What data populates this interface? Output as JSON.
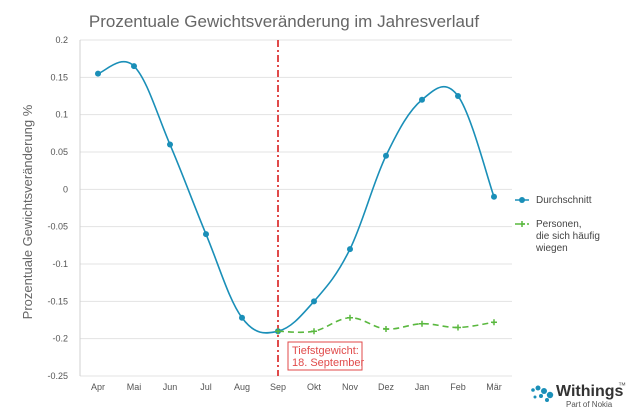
{
  "chart_data": {
    "type": "line",
    "title": "Prozentuale Gewichtsveränderung im Jahresverlauf",
    "xlabel": "",
    "ylabel": "Prozentuale Gewichtsveränderung %",
    "categories": [
      "Apr",
      "Mai",
      "Jun",
      "Jul",
      "Aug",
      "Sep",
      "Okt",
      "Nov",
      "Dez",
      "Jan",
      "Feb",
      "Mär"
    ],
    "ylim": [
      -0.25,
      0.2
    ],
    "yticks": [
      "0.2",
      "0.15",
      "0.1",
      "0.05",
      "0",
      "-0.05",
      "-0.1",
      "-0.15",
      "-0.2",
      "-0.25"
    ],
    "yticks_values": [
      0.2,
      0.15,
      0.1,
      0.05,
      0,
      -0.05,
      -0.1,
      -0.15,
      -0.2,
      -0.25
    ],
    "grid": true,
    "legend_position": "right",
    "series": [
      {
        "name": "Durchschnitt",
        "color": "#1a8fb8",
        "style": "solid",
        "points": [
          {
            "x": "Apr",
            "y": 0.155
          },
          {
            "x": "Mai",
            "y": 0.165
          },
          {
            "x": "Jun",
            "y": 0.06
          },
          {
            "x": "Jul",
            "y": -0.06
          },
          {
            "x": "Aug",
            "y": -0.172
          },
          {
            "x": "Sep",
            "y": -0.19
          },
          {
            "x": "Okt",
            "y": -0.15
          },
          {
            "x": "Nov",
            "y": -0.08
          },
          {
            "x": "Dez",
            "y": 0.045
          },
          {
            "x": "Jan",
            "y": 0.12
          },
          {
            "x": "Feb",
            "y": 0.125
          },
          {
            "x": "Mär",
            "y": -0.01
          }
        ]
      },
      {
        "name": "Personen,\ndie sich häufig\nwiegen",
        "color": "#5ab83f",
        "style": "dashed",
        "points": [
          {
            "x": "Sep",
            "y": -0.19
          },
          {
            "x": "Okt",
            "y": -0.19
          },
          {
            "x": "Nov",
            "y": -0.172
          },
          {
            "x": "Dez",
            "y": -0.187
          },
          {
            "x": "Jan",
            "y": -0.18
          },
          {
            "x": "Feb",
            "y": -0.185
          },
          {
            "x": "Mär",
            "y": -0.178
          }
        ]
      }
    ],
    "annotation": {
      "position_label": "Sep",
      "line_color": "#e04a4a",
      "label_line1": "Tiefstgewicht:",
      "label_line2": "18. September"
    }
  },
  "brand": {
    "name": "Withings",
    "trademark": "™",
    "tagline": "Part of Nokia",
    "color": "#1a8fb8"
  }
}
